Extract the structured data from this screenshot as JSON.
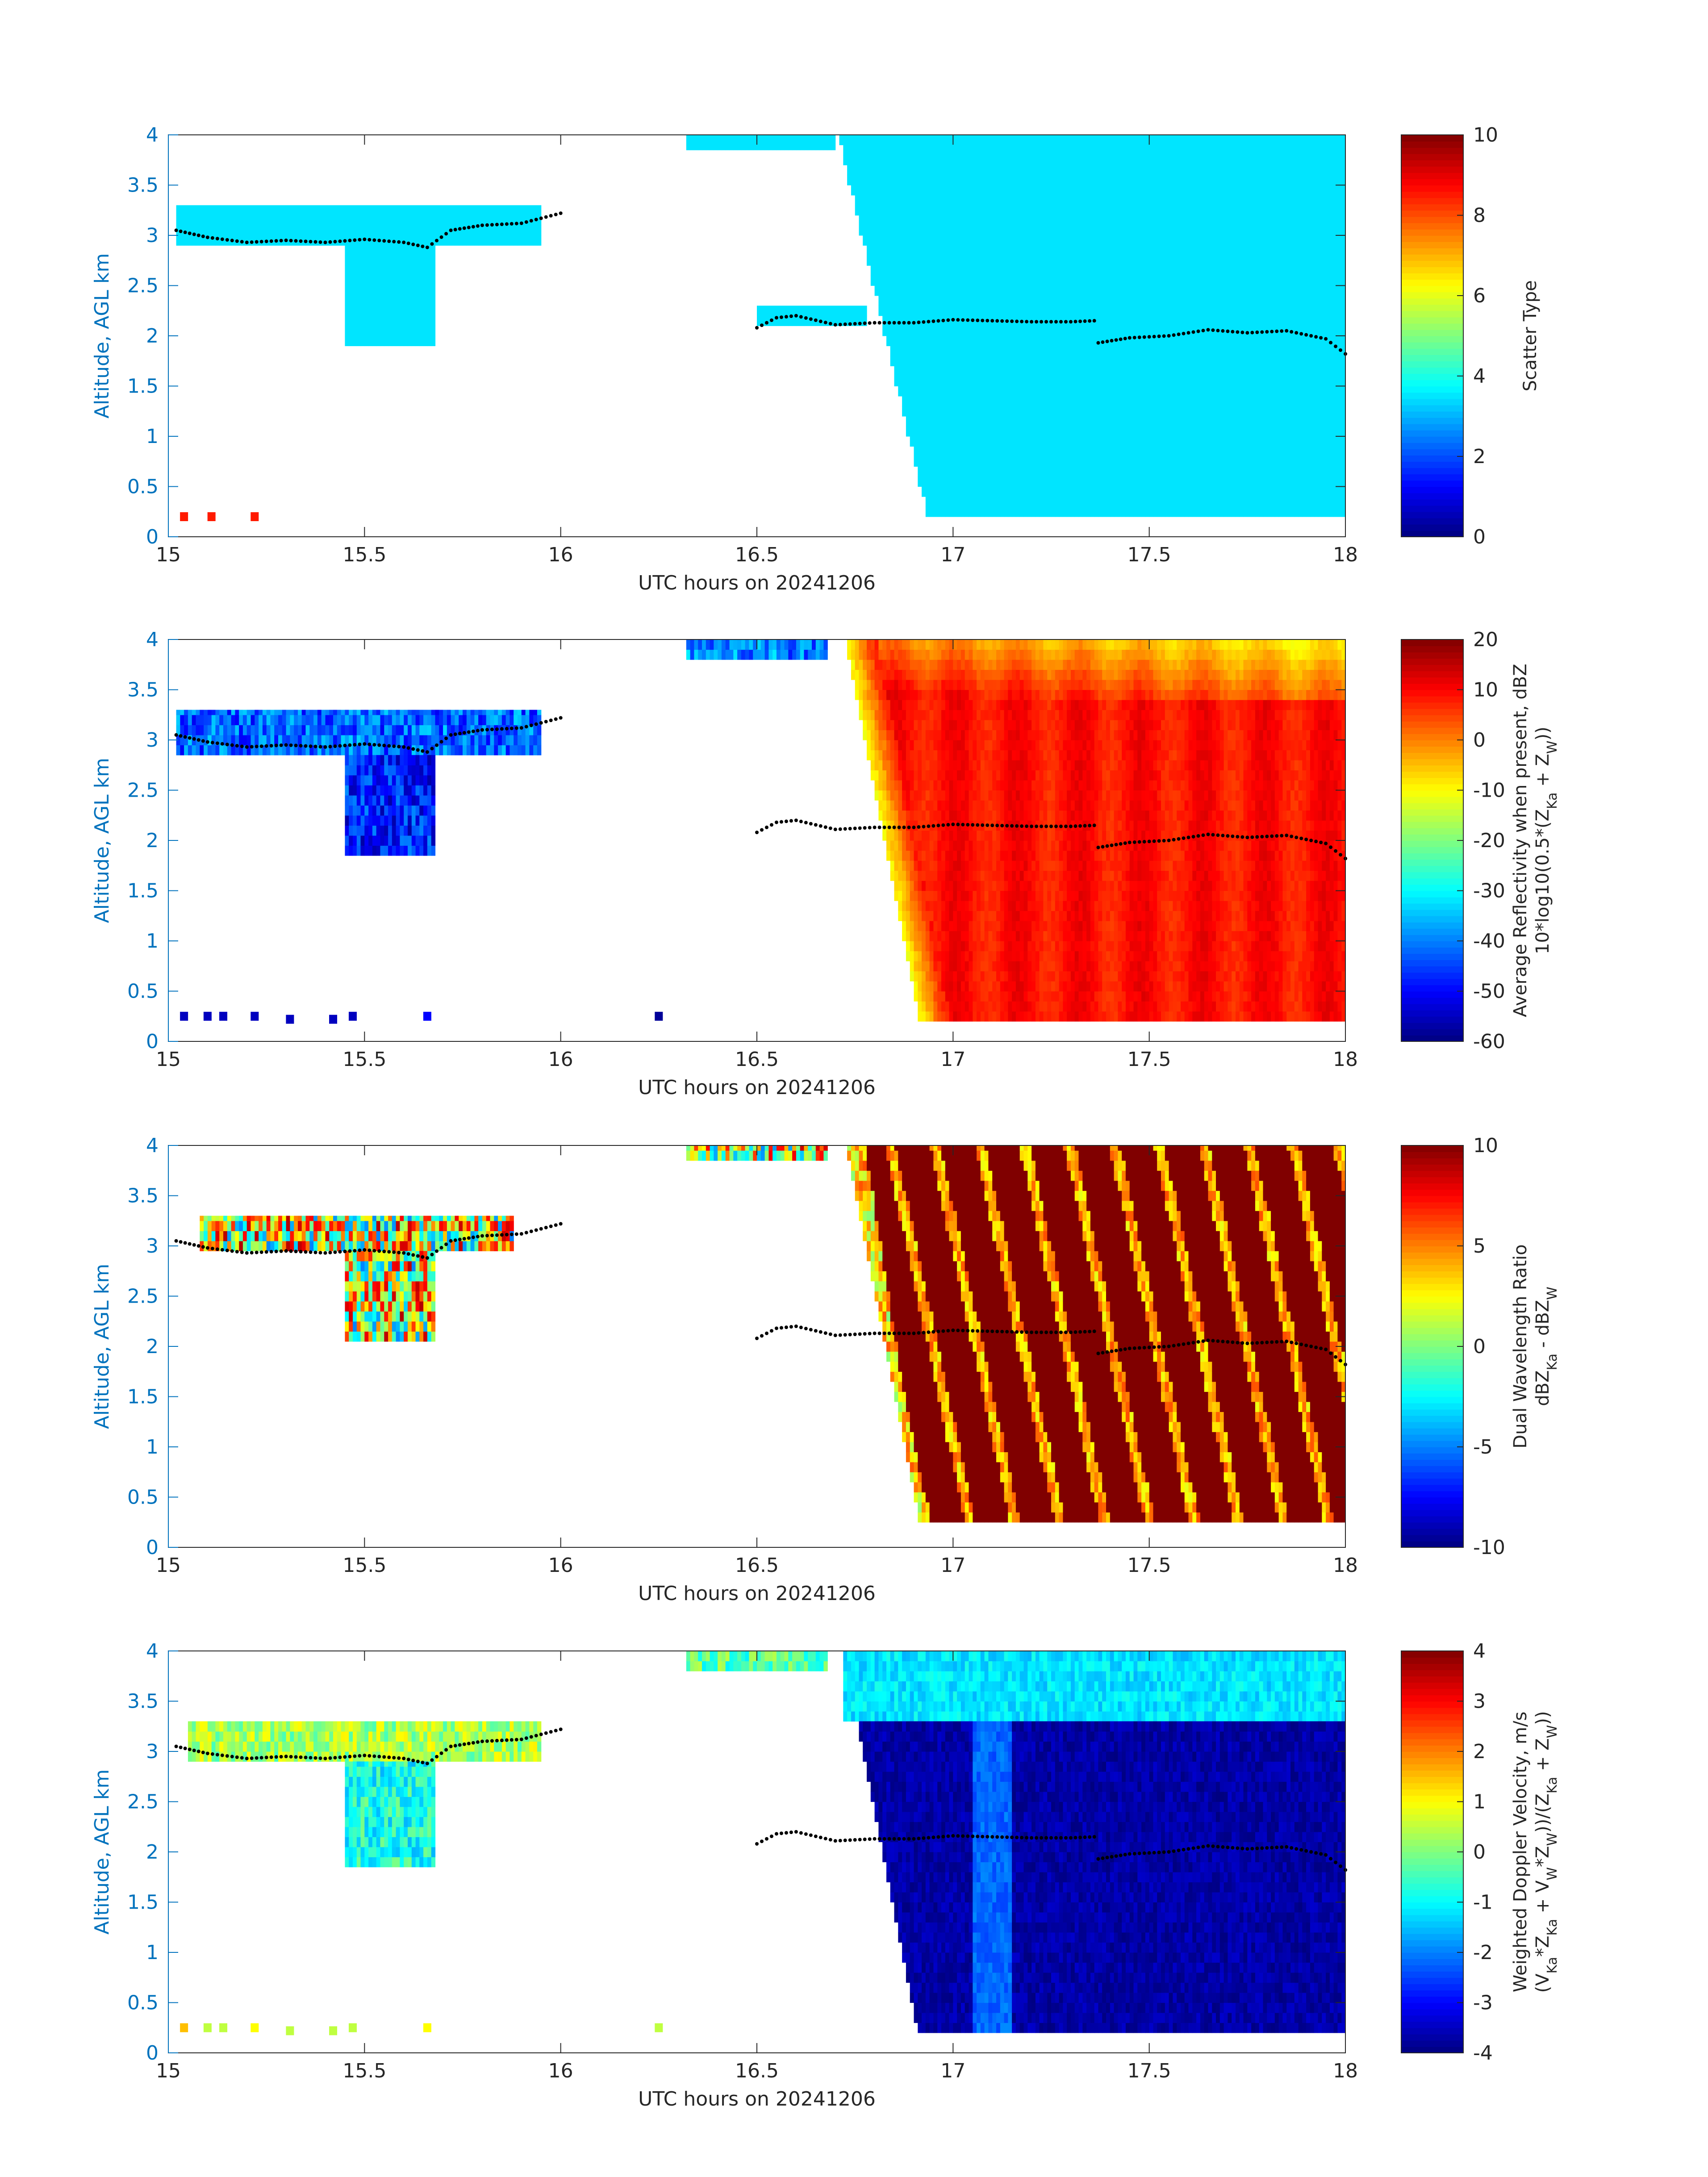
{
  "figure_date_label": "UTC hours on 20241206",
  "chart_data": [
    {
      "type": "heatmap",
      "xlabel": "UTC hours on 20241206",
      "ylabel": "Altitude, AGL km",
      "xlim": [
        15,
        18
      ],
      "ylim": [
        0,
        4
      ],
      "xticks": [
        "15",
        "15.5",
        "16",
        "16.5",
        "17",
        "17.5",
        "18"
      ],
      "yticks": [
        "0",
        "0.5",
        "1",
        "1.5",
        "2",
        "2.5",
        "3",
        "3.5",
        "4"
      ],
      "colorbar": {
        "label_lines": [
          "Scatter Type"
        ],
        "clim": [
          0,
          10
        ],
        "ticks": [
          "0",
          "2",
          "4",
          "6",
          "8",
          "10"
        ]
      },
      "field": "scatter",
      "regions": [
        {
          "t0": 15.02,
          "t1": 15.95,
          "bottom": 2.9,
          "top": 3.3,
          "value": 3.5
        },
        {
          "t0": 15.45,
          "t1": 15.68,
          "bottom": 1.9,
          "top": 2.9,
          "value": 3.5
        },
        {
          "t0": 16.32,
          "t1": 16.7,
          "bottom": 3.85,
          "top": 4.0,
          "value": 3.5
        },
        {
          "t0": 16.5,
          "t1": 16.78,
          "bottom": 2.1,
          "top": 2.3,
          "value": 3.5
        },
        {
          "t0": 16.7,
          "t1": 18.0,
          "bottom": 0.2,
          "top": 4.0,
          "value": 3.5
        }
      ],
      "points": [
        {
          "t": 15.04,
          "z": 0.2,
          "value": 8.5
        },
        {
          "t": 15.11,
          "z": 0.2,
          "value": 8.5
        },
        {
          "t": 15.22,
          "z": 0.2,
          "value": 8.5
        }
      ],
      "melting_layer": [
        [
          15.02,
          3.05
        ],
        [
          15.1,
          2.98
        ],
        [
          15.2,
          2.93
        ],
        [
          15.3,
          2.95
        ],
        [
          15.4,
          2.93
        ],
        [
          15.5,
          2.96
        ],
        [
          15.6,
          2.93
        ],
        [
          15.66,
          2.88
        ],
        [
          15.72,
          3.05
        ],
        [
          15.8,
          3.1
        ],
        [
          15.9,
          3.12
        ],
        [
          16.0,
          3.22
        ],
        [
          16.5,
          2.08
        ],
        [
          16.55,
          2.18
        ],
        [
          16.6,
          2.2
        ],
        [
          16.7,
          2.11
        ],
        [
          16.8,
          2.13
        ],
        [
          16.9,
          2.13
        ],
        [
          17.0,
          2.16
        ],
        [
          17.1,
          2.15
        ],
        [
          17.2,
          2.14
        ],
        [
          17.3,
          2.14
        ],
        [
          17.36,
          2.15
        ],
        [
          17.37,
          1.93
        ],
        [
          17.45,
          1.98
        ],
        [
          17.55,
          2.0
        ],
        [
          17.65,
          2.06
        ],
        [
          17.75,
          2.03
        ],
        [
          17.85,
          2.05
        ],
        [
          17.95,
          1.97
        ],
        [
          18.0,
          1.82
        ]
      ]
    },
    {
      "type": "heatmap",
      "xlabel": "UTC hours on 20241206",
      "ylabel": "Altitude, AGL km",
      "xlim": [
        15,
        18
      ],
      "ylim": [
        0,
        4
      ],
      "xticks": [
        "15",
        "15.5",
        "16",
        "16.5",
        "17",
        "17.5",
        "18"
      ],
      "yticks": [
        "0",
        "0.5",
        "1",
        "1.5",
        "2",
        "2.5",
        "3",
        "3.5",
        "4"
      ],
      "colorbar": {
        "label_lines": [
          "Average Reflectivity when present, dBZ",
          "10*log10(0.5*(Z_Ka + Z_W))"
        ],
        "clim": [
          -60,
          20
        ],
        "ticks": [
          "-60",
          "-50",
          "-40",
          "-30",
          "-20",
          "-10",
          "0",
          "10",
          "20"
        ]
      },
      "field": "reflectivity",
      "regions": [
        {
          "t0": 15.02,
          "t1": 15.95,
          "bottom": 2.85,
          "top": 3.3,
          "value": -42
        },
        {
          "t0": 15.45,
          "t1": 15.68,
          "bottom": 1.85,
          "top": 2.85,
          "value": -48
        },
        {
          "t0": 16.32,
          "t1": 16.68,
          "bottom": 3.8,
          "top": 4.0,
          "value": -40
        },
        {
          "t0": 16.72,
          "t1": 18.0,
          "bottom": 0.2,
          "top": 4.0,
          "value": 10
        }
      ],
      "points": [
        {
          "t": 15.04,
          "z": 0.25,
          "value": -55
        },
        {
          "t": 15.1,
          "z": 0.25,
          "value": -55
        },
        {
          "t": 15.14,
          "z": 0.25,
          "value": -55
        },
        {
          "t": 15.22,
          "z": 0.25,
          "value": -55
        },
        {
          "t": 15.31,
          "z": 0.22,
          "value": -55
        },
        {
          "t": 15.42,
          "z": 0.22,
          "value": -55
        },
        {
          "t": 15.47,
          "z": 0.25,
          "value": -55
        },
        {
          "t": 15.66,
          "z": 0.25,
          "value": -50
        },
        {
          "t": 16.25,
          "z": 0.25,
          "value": -58
        }
      ],
      "melting_layer": [
        [
          15.02,
          3.05
        ],
        [
          15.1,
          2.98
        ],
        [
          15.2,
          2.93
        ],
        [
          15.3,
          2.95
        ],
        [
          15.4,
          2.93
        ],
        [
          15.5,
          2.96
        ],
        [
          15.6,
          2.93
        ],
        [
          15.66,
          2.88
        ],
        [
          15.72,
          3.05
        ],
        [
          15.8,
          3.1
        ],
        [
          15.9,
          3.12
        ],
        [
          16.0,
          3.22
        ],
        [
          16.5,
          2.08
        ],
        [
          16.55,
          2.18
        ],
        [
          16.6,
          2.2
        ],
        [
          16.7,
          2.11
        ],
        [
          16.8,
          2.13
        ],
        [
          16.9,
          2.13
        ],
        [
          17.0,
          2.16
        ],
        [
          17.1,
          2.15
        ],
        [
          17.2,
          2.14
        ],
        [
          17.3,
          2.14
        ],
        [
          17.36,
          2.15
        ],
        [
          17.37,
          1.93
        ],
        [
          17.45,
          1.98
        ],
        [
          17.55,
          2.0
        ],
        [
          17.65,
          2.06
        ],
        [
          17.75,
          2.03
        ],
        [
          17.85,
          2.05
        ],
        [
          17.95,
          1.97
        ],
        [
          18.0,
          1.82
        ]
      ]
    },
    {
      "type": "heatmap",
      "xlabel": "UTC hours on 20241206",
      "ylabel": "Altitude, AGL km",
      "xlim": [
        15,
        18
      ],
      "ylim": [
        0,
        4
      ],
      "xticks": [
        "15",
        "15.5",
        "16",
        "16.5",
        "17",
        "17.5",
        "18"
      ],
      "yticks": [
        "0",
        "0.5",
        "1",
        "1.5",
        "2",
        "2.5",
        "3",
        "3.5",
        "4"
      ],
      "colorbar": {
        "label_lines": [
          "Dual Wavelength Ratio",
          "dBZ_Ka - dBZ_W"
        ],
        "clim": [
          -10,
          10
        ],
        "ticks": [
          "-10",
          "-5",
          "0",
          "5",
          "10"
        ]
      },
      "field": "dwr",
      "regions": [
        {
          "t0": 15.08,
          "t1": 15.88,
          "bottom": 2.95,
          "top": 3.3,
          "value": 2
        },
        {
          "t0": 15.45,
          "t1": 15.68,
          "bottom": 2.05,
          "top": 2.95,
          "value": 2
        },
        {
          "t0": 16.32,
          "t1": 16.68,
          "bottom": 3.85,
          "top": 4.0,
          "value": 2
        },
        {
          "t0": 16.72,
          "t1": 18.0,
          "bottom": 0.25,
          "top": 4.0,
          "value": 10
        }
      ],
      "points": [],
      "melting_layer": [
        [
          15.02,
          3.05
        ],
        [
          15.1,
          2.98
        ],
        [
          15.2,
          2.93
        ],
        [
          15.3,
          2.95
        ],
        [
          15.4,
          2.93
        ],
        [
          15.5,
          2.96
        ],
        [
          15.6,
          2.93
        ],
        [
          15.66,
          2.88
        ],
        [
          15.72,
          3.05
        ],
        [
          15.8,
          3.1
        ],
        [
          15.9,
          3.12
        ],
        [
          16.0,
          3.22
        ],
        [
          16.5,
          2.08
        ],
        [
          16.55,
          2.18
        ],
        [
          16.6,
          2.2
        ],
        [
          16.7,
          2.11
        ],
        [
          16.8,
          2.13
        ],
        [
          16.9,
          2.13
        ],
        [
          17.0,
          2.16
        ],
        [
          17.1,
          2.15
        ],
        [
          17.2,
          2.14
        ],
        [
          17.3,
          2.14
        ],
        [
          17.36,
          2.15
        ],
        [
          17.37,
          1.93
        ],
        [
          17.45,
          1.98
        ],
        [
          17.55,
          2.0
        ],
        [
          17.65,
          2.06
        ],
        [
          17.75,
          2.03
        ],
        [
          17.85,
          2.05
        ],
        [
          17.95,
          1.97
        ],
        [
          18.0,
          1.82
        ]
      ]
    },
    {
      "type": "heatmap",
      "xlabel": "UTC hours on 20241206",
      "ylabel": "Altitude, AGL km",
      "xlim": [
        15,
        18
      ],
      "ylim": [
        0,
        4
      ],
      "xticks": [
        "15",
        "15.5",
        "16",
        "16.5",
        "17",
        "17.5",
        "18"
      ],
      "yticks": [
        "0",
        "0.5",
        "1",
        "1.5",
        "2",
        "2.5",
        "3",
        "3.5",
        "4"
      ],
      "colorbar": {
        "label_lines": [
          "Weighted Doppler Velocity, m/s",
          "(V_Ka*Z_Ka + V_W*Z_W))/(Z_Ka + Z_W))"
        ],
        "clim": [
          -4,
          4
        ],
        "ticks": [
          "-4",
          "-3",
          "-2",
          "-1",
          "0",
          "1",
          "2",
          "3",
          "4"
        ]
      },
      "field": "velocity",
      "regions": [
        {
          "t0": 15.05,
          "t1": 15.95,
          "bottom": 2.9,
          "top": 3.3,
          "value": 0.3
        },
        {
          "t0": 15.45,
          "t1": 15.68,
          "bottom": 1.85,
          "top": 2.9,
          "value": -0.8
        },
        {
          "t0": 16.32,
          "t1": 16.68,
          "bottom": 3.8,
          "top": 4.0,
          "value": -0.3
        },
        {
          "t0": 16.72,
          "t1": 18.0,
          "bottom": 3.3,
          "top": 4.0,
          "value": -1.2
        },
        {
          "t0": 16.75,
          "t1": 18.0,
          "bottom": 0.2,
          "top": 3.3,
          "value": -3.7
        }
      ],
      "points": [
        {
          "t": 15.04,
          "z": 0.25,
          "value": 1.5
        },
        {
          "t": 15.1,
          "z": 0.25,
          "value": 0.5
        },
        {
          "t": 15.14,
          "z": 0.25,
          "value": 0.5
        },
        {
          "t": 15.22,
          "z": 0.25,
          "value": 1.0
        },
        {
          "t": 15.31,
          "z": 0.22,
          "value": 0.5
        },
        {
          "t": 15.42,
          "z": 0.22,
          "value": 0.5
        },
        {
          "t": 15.47,
          "z": 0.25,
          "value": 0.5
        },
        {
          "t": 15.66,
          "z": 0.25,
          "value": 1.0
        },
        {
          "t": 16.25,
          "z": 0.25,
          "value": 0.5
        }
      ],
      "melting_layer": [
        [
          15.02,
          3.05
        ],
        [
          15.1,
          2.98
        ],
        [
          15.2,
          2.93
        ],
        [
          15.3,
          2.95
        ],
        [
          15.4,
          2.93
        ],
        [
          15.5,
          2.96
        ],
        [
          15.6,
          2.93
        ],
        [
          15.66,
          2.88
        ],
        [
          15.72,
          3.05
        ],
        [
          15.8,
          3.1
        ],
        [
          15.9,
          3.12
        ],
        [
          16.0,
          3.22
        ],
        [
          16.5,
          2.08
        ],
        [
          16.55,
          2.18
        ],
        [
          16.6,
          2.2
        ],
        [
          16.7,
          2.11
        ],
        [
          16.8,
          2.13
        ],
        [
          16.9,
          2.13
        ],
        [
          17.0,
          2.16
        ],
        [
          17.1,
          2.15
        ],
        [
          17.2,
          2.14
        ],
        [
          17.3,
          2.14
        ],
        [
          17.36,
          2.15
        ],
        [
          17.37,
          1.93
        ],
        [
          17.45,
          1.98
        ],
        [
          17.55,
          2.0
        ],
        [
          17.65,
          2.06
        ],
        [
          17.75,
          2.03
        ],
        [
          17.85,
          2.05
        ],
        [
          17.95,
          1.97
        ],
        [
          18.0,
          1.82
        ]
      ]
    }
  ]
}
